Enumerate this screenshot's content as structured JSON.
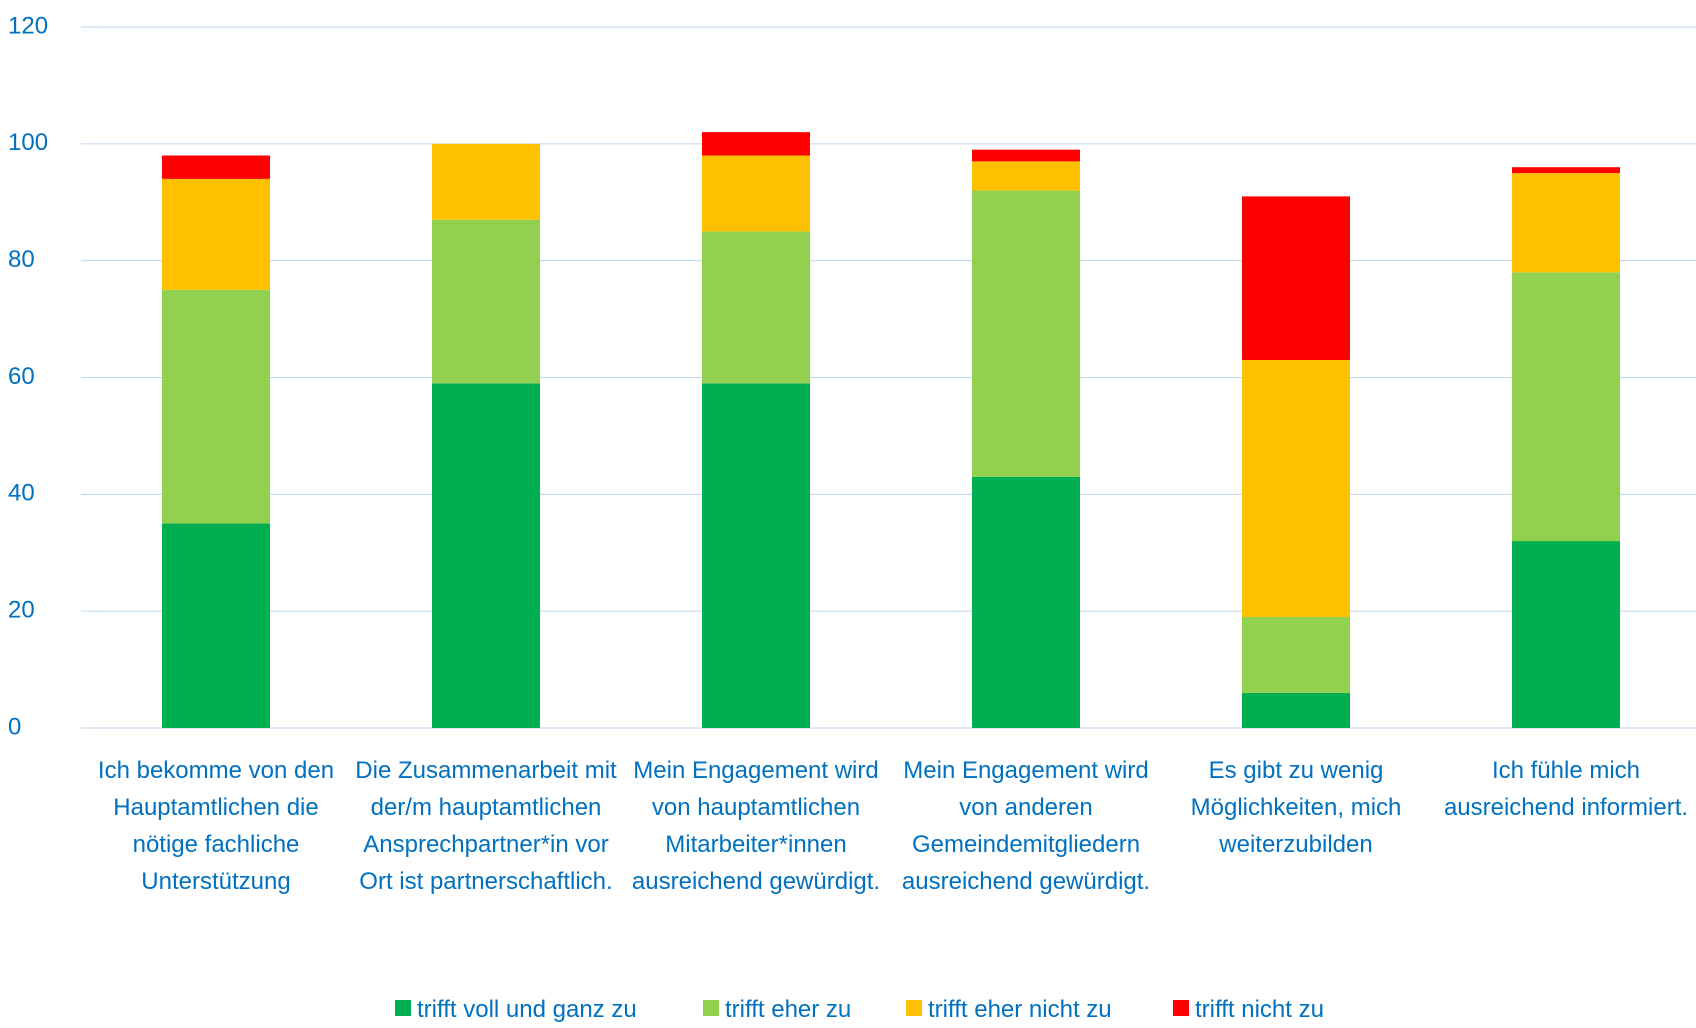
{
  "chart_data": {
    "type": "stacked_bar",
    "categories": [
      "Ich bekomme von den Hauptamtlichen die nötige fachliche Unterstützung",
      "Die Zusammenarbeit mit der/m hauptamtlichen Ansprechpartner*in vor Ort ist partnerschaftlich.",
      "Mein Engagement wird von hauptamtlichen Mitarbeiter*innen ausreichend gewürdigt.",
      "Mein Engagement wird von anderen Gemeindemitgliedern ausreichend gewürdigt.",
      "Es gibt zu wenig Möglichkeiten, mich weiterzubilden",
      "Ich fühle mich ausreichend informiert."
    ],
    "series": [
      {
        "name": "trifft voll und ganz zu",
        "color": "#00b050",
        "values": [
          35,
          59,
          59,
          43,
          6,
          32
        ]
      },
      {
        "name": "trifft eher zu",
        "color": "#92d050",
        "values": [
          40,
          28,
          26,
          49,
          13,
          46
        ]
      },
      {
        "name": "trifft eher nicht zu",
        "color": "#ffc000",
        "values": [
          19,
          13,
          13,
          5,
          44,
          17
        ]
      },
      {
        "name": "trifft nicht zu",
        "color": "#ff0000",
        "values": [
          4,
          0,
          4,
          2,
          28,
          1
        ]
      }
    ],
    "ylim": [
      0,
      120
    ],
    "yticks": [
      0,
      20,
      40,
      60,
      80,
      100,
      120
    ],
    "grid": true,
    "legend": "bottom"
  }
}
